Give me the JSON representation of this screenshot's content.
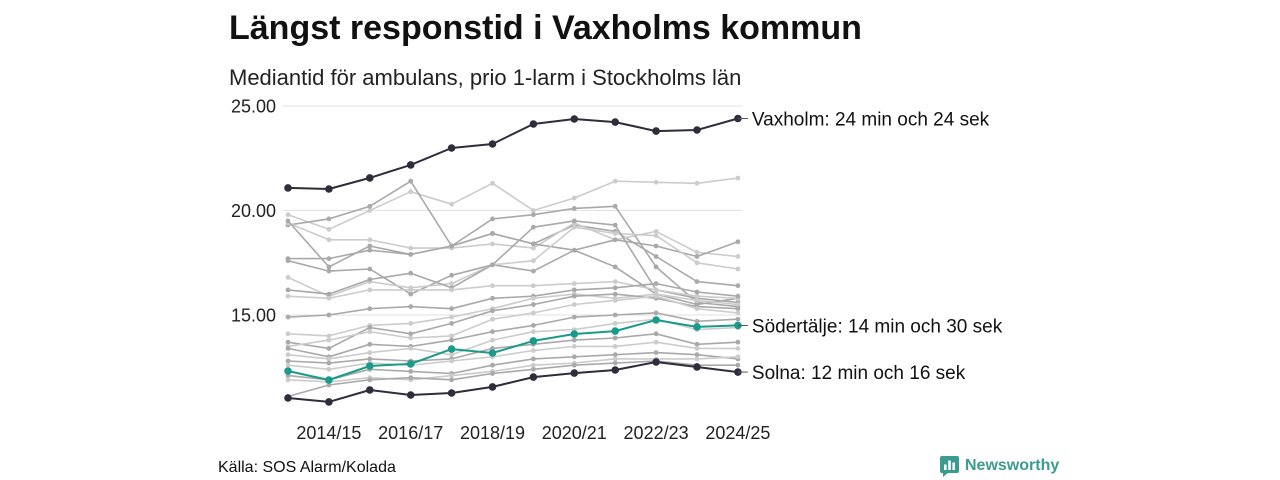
{
  "chart_data": {
    "type": "line",
    "title": "Längst responstid i Vaxholms kommun",
    "subtitle": "Mediantid för ambulans, prio 1-larm i Stockholms län",
    "grid": true,
    "x": [
      2013,
      2014,
      2015,
      2016,
      2017,
      2018,
      2019,
      2020,
      2021,
      2022,
      2023,
      2024
    ],
    "xticks": [
      {
        "x": 2014,
        "label": "2014/15"
      },
      {
        "x": 2016,
        "label": "2016/17"
      },
      {
        "x": 2018,
        "label": "2018/19"
      },
      {
        "x": 2020,
        "label": "2020/21"
      },
      {
        "x": 2022,
        "label": "2022/23"
      },
      {
        "x": 2024,
        "label": "2024/25"
      }
    ],
    "yticks": [
      {
        "value": 25,
        "label": "25.00"
      },
      {
        "value": 20,
        "label": "20.00"
      },
      {
        "value": 15,
        "label": "15.00"
      }
    ],
    "series": [
      {
        "color": "#cccccc",
        "values": [
          19.8,
          19.1,
          20.0,
          20.9,
          20.3,
          21.3,
          20.0,
          20.6,
          21.4,
          21.35,
          21.3,
          21.55
        ]
      },
      {
        "color": "#a9a9a9",
        "values": [
          19.3,
          19.6,
          20.2,
          21.4,
          18.3,
          18.9,
          18.4,
          19.3,
          19.0,
          17.8,
          16.6,
          16.4
        ]
      },
      {
        "color": "#cccccc",
        "values": [
          19.4,
          18.6,
          18.6,
          18.2,
          18.2,
          18.4,
          18.2,
          19.4,
          18.6,
          19.0,
          18.0,
          17.8
        ]
      },
      {
        "color": "#a9a9a9",
        "values": [
          19.5,
          17.3,
          18.3,
          17.9,
          18.3,
          19.6,
          19.8,
          20.1,
          20.2,
          17.3,
          15.6,
          15.4
        ]
      },
      {
        "color": "#a9a9a9",
        "values": [
          17.7,
          17.7,
          18.1,
          17.9,
          18.3,
          18.9,
          18.4,
          18.1,
          18.6,
          18.3,
          17.8,
          18.5
        ]
      },
      {
        "color": "#a9a9a9",
        "values": [
          17.6,
          17.1,
          17.2,
          16.0,
          16.9,
          17.4,
          17.1,
          18.1,
          17.3,
          16.0,
          15.5,
          15.8
        ]
      },
      {
        "color": "#cccccc",
        "values": [
          16.8,
          15.9,
          16.6,
          16.3,
          16.5,
          17.4,
          17.6,
          19.2,
          18.9,
          18.8,
          17.5,
          17.2
        ]
      },
      {
        "color": "#a9a9a9",
        "values": [
          16.2,
          16.0,
          16.7,
          17.0,
          16.3,
          17.4,
          19.2,
          19.5,
          19.3,
          16.2,
          15.8,
          15.6
        ]
      },
      {
        "color": "#cccccc",
        "values": [
          15.9,
          15.8,
          16.2,
          16.2,
          16.2,
          16.4,
          16.4,
          16.5,
          16.6,
          16.2,
          15.9,
          15.8
        ]
      },
      {
        "color": "#a9a9a9",
        "values": [
          14.9,
          15.0,
          15.3,
          15.4,
          15.3,
          15.8,
          15.9,
          16.2,
          16.3,
          16.5,
          16.1,
          15.9
        ]
      },
      {
        "color": "#cccccc",
        "values": [
          14.1,
          14.0,
          14.5,
          14.6,
          14.9,
          15.3,
          15.8,
          16.0,
          15.8,
          16.0,
          15.7,
          15.5
        ]
      },
      {
        "color": "#a9a9a9",
        "values": [
          13.7,
          13.4,
          14.4,
          14.1,
          14.6,
          15.2,
          15.5,
          15.9,
          16.0,
          15.8,
          15.4,
          15.3
        ]
      },
      {
        "color": "#cccccc",
        "values": [
          13.5,
          13.8,
          14.2,
          13.9,
          14.0,
          14.8,
          15.1,
          15.5,
          15.7,
          15.9,
          15.3,
          15.1
        ]
      },
      {
        "color": "#a9a9a9",
        "values": [
          13.4,
          13.0,
          13.6,
          13.5,
          13.8,
          14.2,
          14.5,
          14.9,
          15.0,
          15.1,
          14.7,
          14.8
        ]
      },
      {
        "color": "#cccccc",
        "values": [
          13.1,
          12.9,
          13.2,
          13.4,
          13.1,
          13.8,
          14.2,
          14.3,
          14.6,
          14.8,
          14.3,
          14.4
        ]
      },
      {
        "color": "#a9a9a9",
        "values": [
          12.8,
          12.7,
          12.9,
          12.8,
          12.9,
          13.4,
          13.6,
          13.8,
          13.9,
          14.1,
          13.6,
          13.7
        ]
      },
      {
        "color": "#cccccc",
        "values": [
          12.6,
          12.4,
          12.7,
          12.6,
          12.8,
          13.0,
          13.3,
          13.5,
          13.5,
          13.7,
          13.4,
          13.4
        ]
      },
      {
        "color": "#a9a9a9",
        "values": [
          12.1,
          11.9,
          12.4,
          12.3,
          12.2,
          12.6,
          12.9,
          13.0,
          13.1,
          13.2,
          13.1,
          12.9
        ]
      },
      {
        "color": "#cccccc",
        "values": [
          11.9,
          11.8,
          12.0,
          11.9,
          12.1,
          12.3,
          12.6,
          12.7,
          12.9,
          12.9,
          12.9,
          13.0
        ]
      },
      {
        "color": "#a9a9a9",
        "values": [
          11.1,
          11.65,
          11.9,
          12.0,
          11.9,
          12.2,
          12.4,
          12.6,
          12.7,
          12.8,
          12.6,
          12.6
        ]
      },
      {
        "color": "#2d2d3c",
        "label": "Solna: 12 min och 16 sek",
        "values": [
          11.03,
          10.84,
          11.41,
          11.17,
          11.27,
          11.56,
          12.03,
          12.22,
          12.37,
          12.75,
          12.51,
          12.27
        ]
      },
      {
        "color": "#1a9a8a",
        "label": "Södertälje: 14 min och 30 sek",
        "values": [
          12.32,
          11.89,
          12.56,
          12.66,
          13.37,
          13.18,
          13.76,
          14.09,
          14.23,
          14.76,
          14.43,
          14.5
        ]
      },
      {
        "color": "#2d2d3c",
        "label": "Vaxholm: 24 min och 24 sek",
        "values": [
          21.08,
          21.03,
          21.56,
          22.18,
          22.99,
          23.18,
          24.14,
          24.38,
          24.23,
          23.8,
          23.85,
          24.4
        ]
      }
    ]
  },
  "footer": {
    "source": "Källa: SOS Alarm/Kolada",
    "brand": "Newsworthy",
    "brand_color": "#3b9b8f"
  }
}
